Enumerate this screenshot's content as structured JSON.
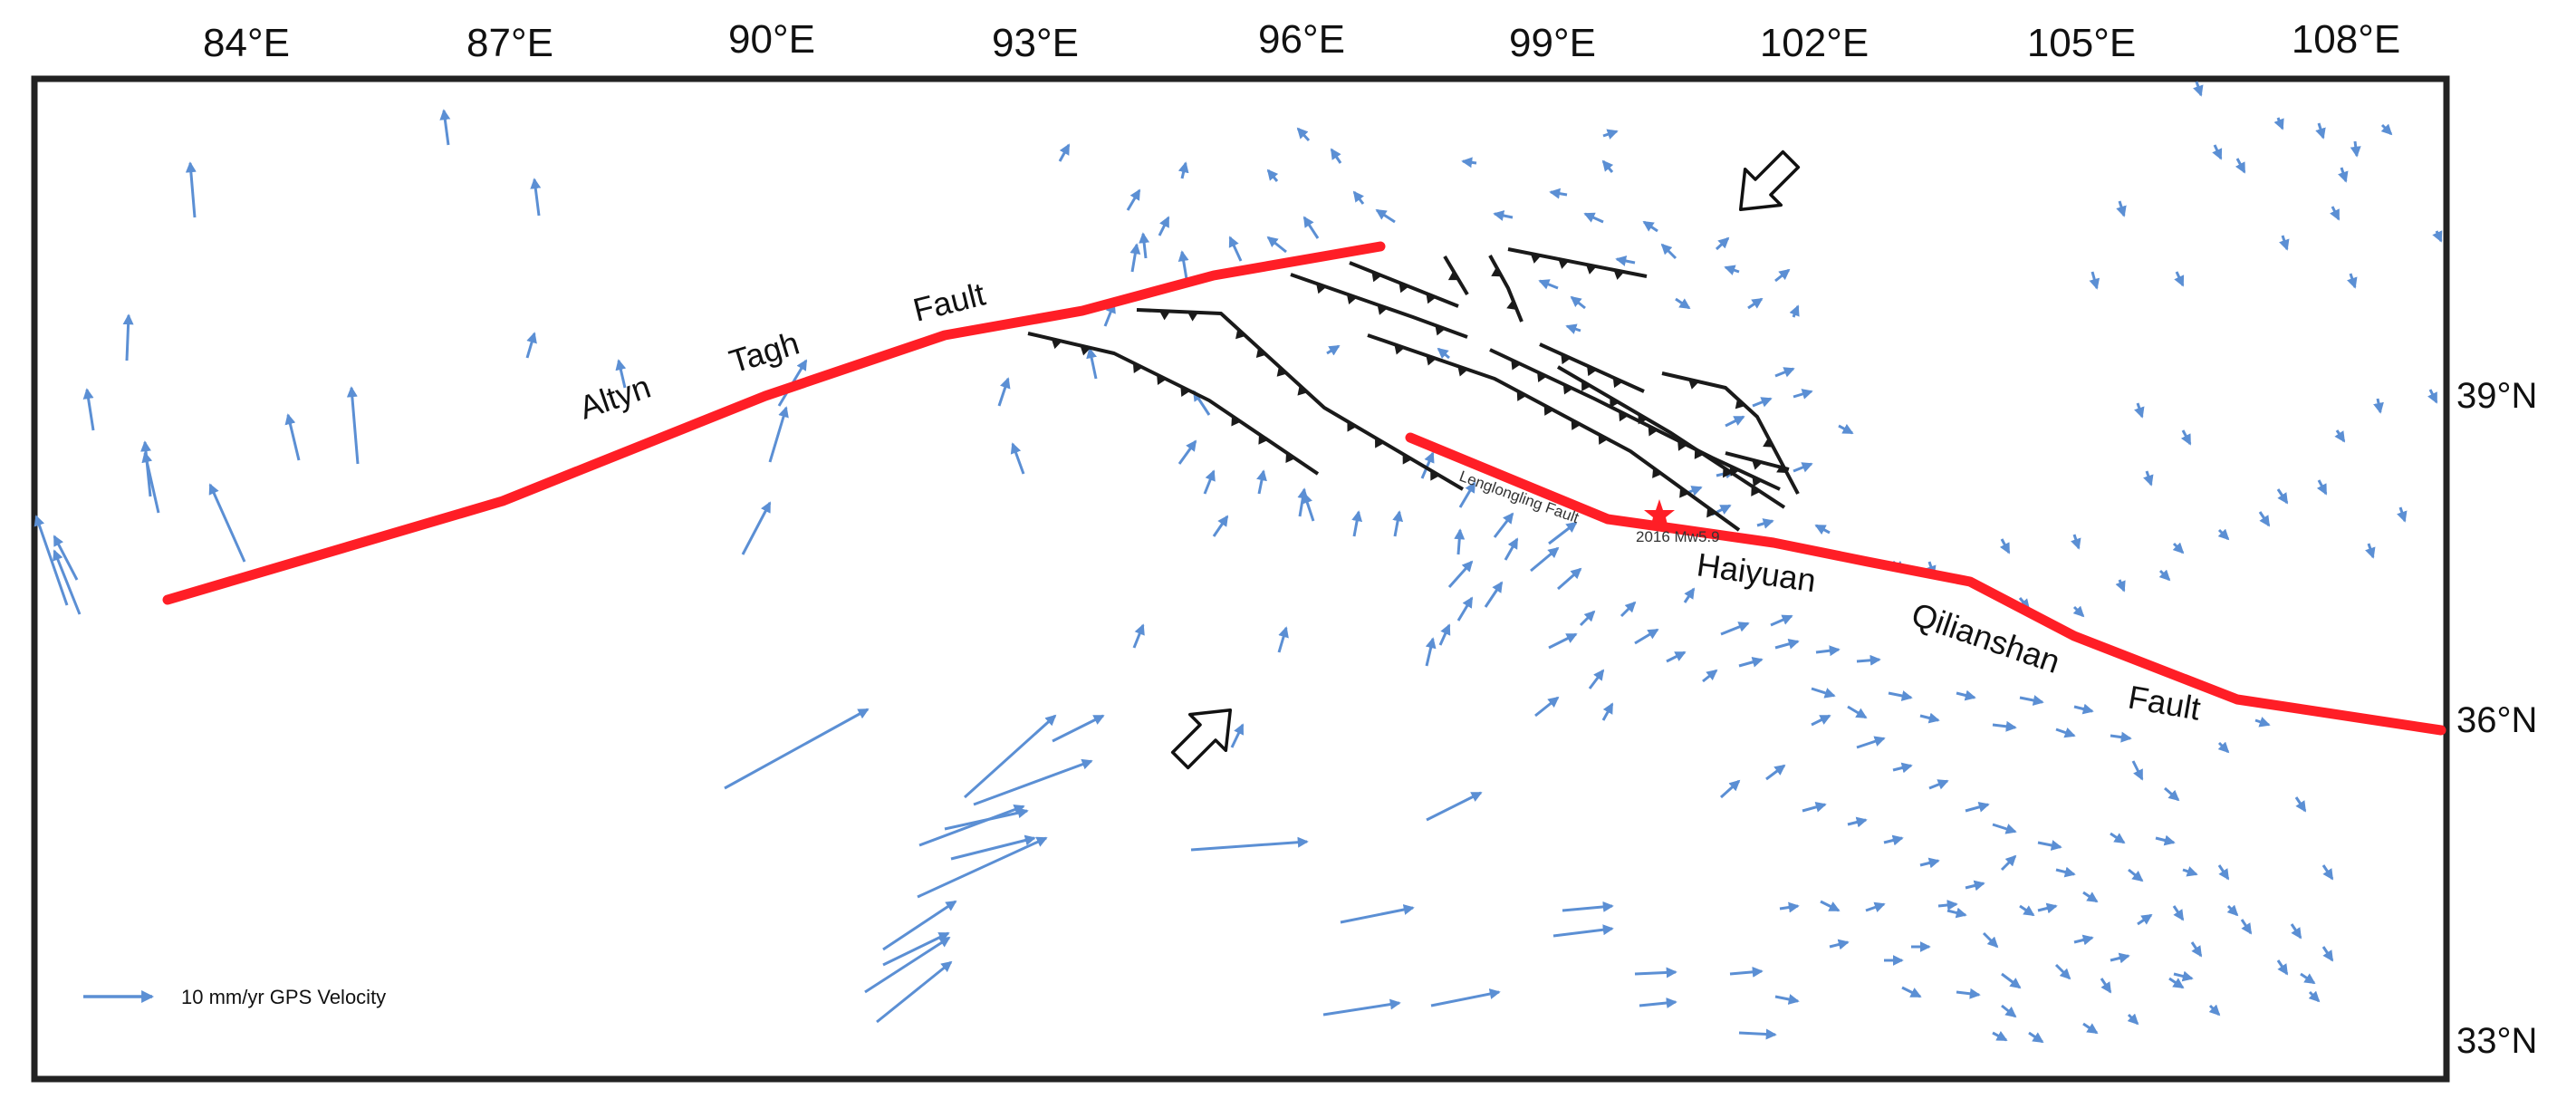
{
  "colors": {
    "frame": "#222222",
    "major_fault": "#ff1e26",
    "thrust_fault": "#1a1a1a",
    "gps_vector": "#5b8fd4",
    "epicenter": "#ff1e26",
    "label": "#111111"
  },
  "axes": {
    "longitude_labels": [
      "84°E",
      "87°E",
      "90°E",
      "93°E",
      "96°E",
      "99°E",
      "102°E",
      "105°E",
      "108°E"
    ],
    "latitude_labels": [
      "39°N",
      "36°N",
      "33°N"
    ]
  },
  "fault_labels": {
    "altyn": "Altyn",
    "tagh": "Tagh",
    "fault1": "Fault",
    "haiyuan": "Haiyuan",
    "qilianshan": "Qilianshan",
    "fault2": "Fault",
    "lenglongling": "Lenglongling Fault"
  },
  "event_label": "2016 Mw5.9",
  "legend": {
    "label": "10 mm/yr GPS Velocity",
    "icon": "gps-vector-arrow-icon"
  },
  "motion_arrows": {
    "ne_icon": "northeast-motion-arrow-icon",
    "sw_icon": "southwest-motion-arrow-icon"
  }
}
